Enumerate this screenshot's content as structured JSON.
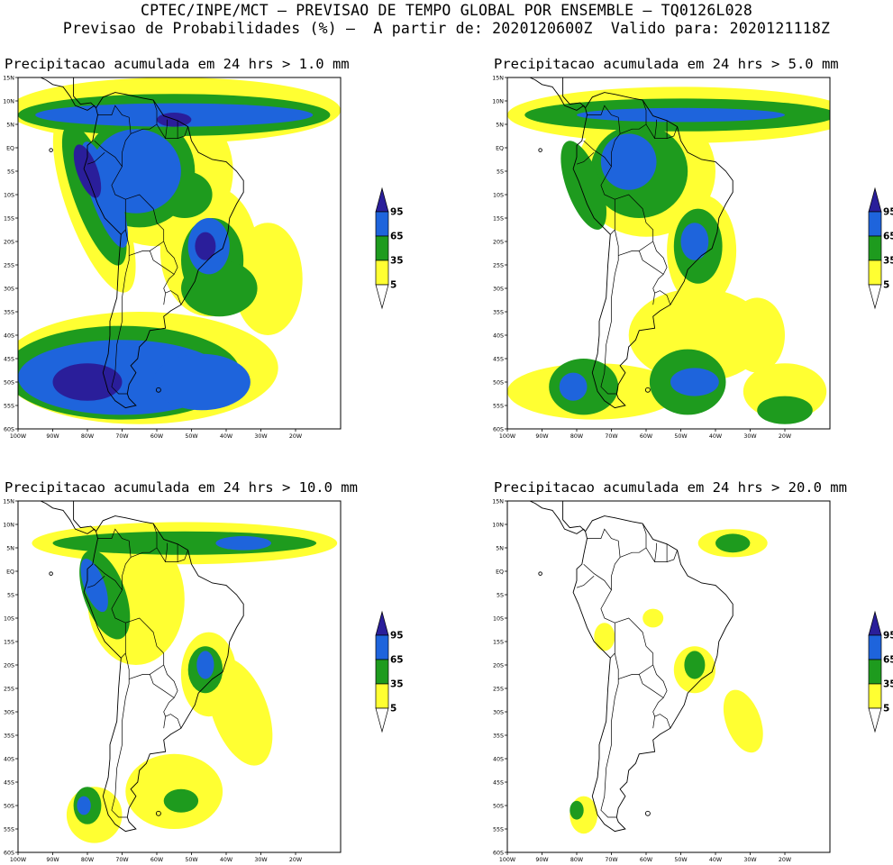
{
  "header": {
    "line1": "CPTEC/INPE/MCT – PREVISAO DE TEMPO GLOBAL POR ENSEMBLE – TQ0126L028",
    "line2": "Previsao de Probabilidades (%) –  A partir de: 2020120600Z  Valido para: 2020121118Z"
  },
  "axes": {
    "lat_labels": [
      "15N",
      "10N",
      "5N",
      "EQ",
      "5S",
      "10S",
      "15S",
      "20S",
      "25S",
      "30S",
      "35S",
      "40S",
      "45S",
      "50S",
      "55S",
      "60S"
    ],
    "lon_labels": [
      "100W",
      "90W",
      "80W",
      "70W",
      "60W",
      "50W",
      "40W",
      "30W",
      "20W"
    ]
  },
  "colorbar": {
    "levels": [
      "5",
      "35",
      "65",
      "95"
    ],
    "colors": {
      "low": "#ffff32",
      "mid": "#1e9b1e",
      "high": "#1e64dc",
      "top": "#2a1e9a"
    }
  },
  "panels": [
    {
      "title": "Precipitacao acumulada em 24 hrs > 1.0 mm"
    },
    {
      "title": "Precipitacao acumulada em 24 hrs > 5.0 mm"
    },
    {
      "title": "Precipitacao acumulada em 24 hrs > 10.0 mm"
    },
    {
      "title": "Precipitacao acumulada em 24 hrs > 20.0 mm"
    }
  ]
}
